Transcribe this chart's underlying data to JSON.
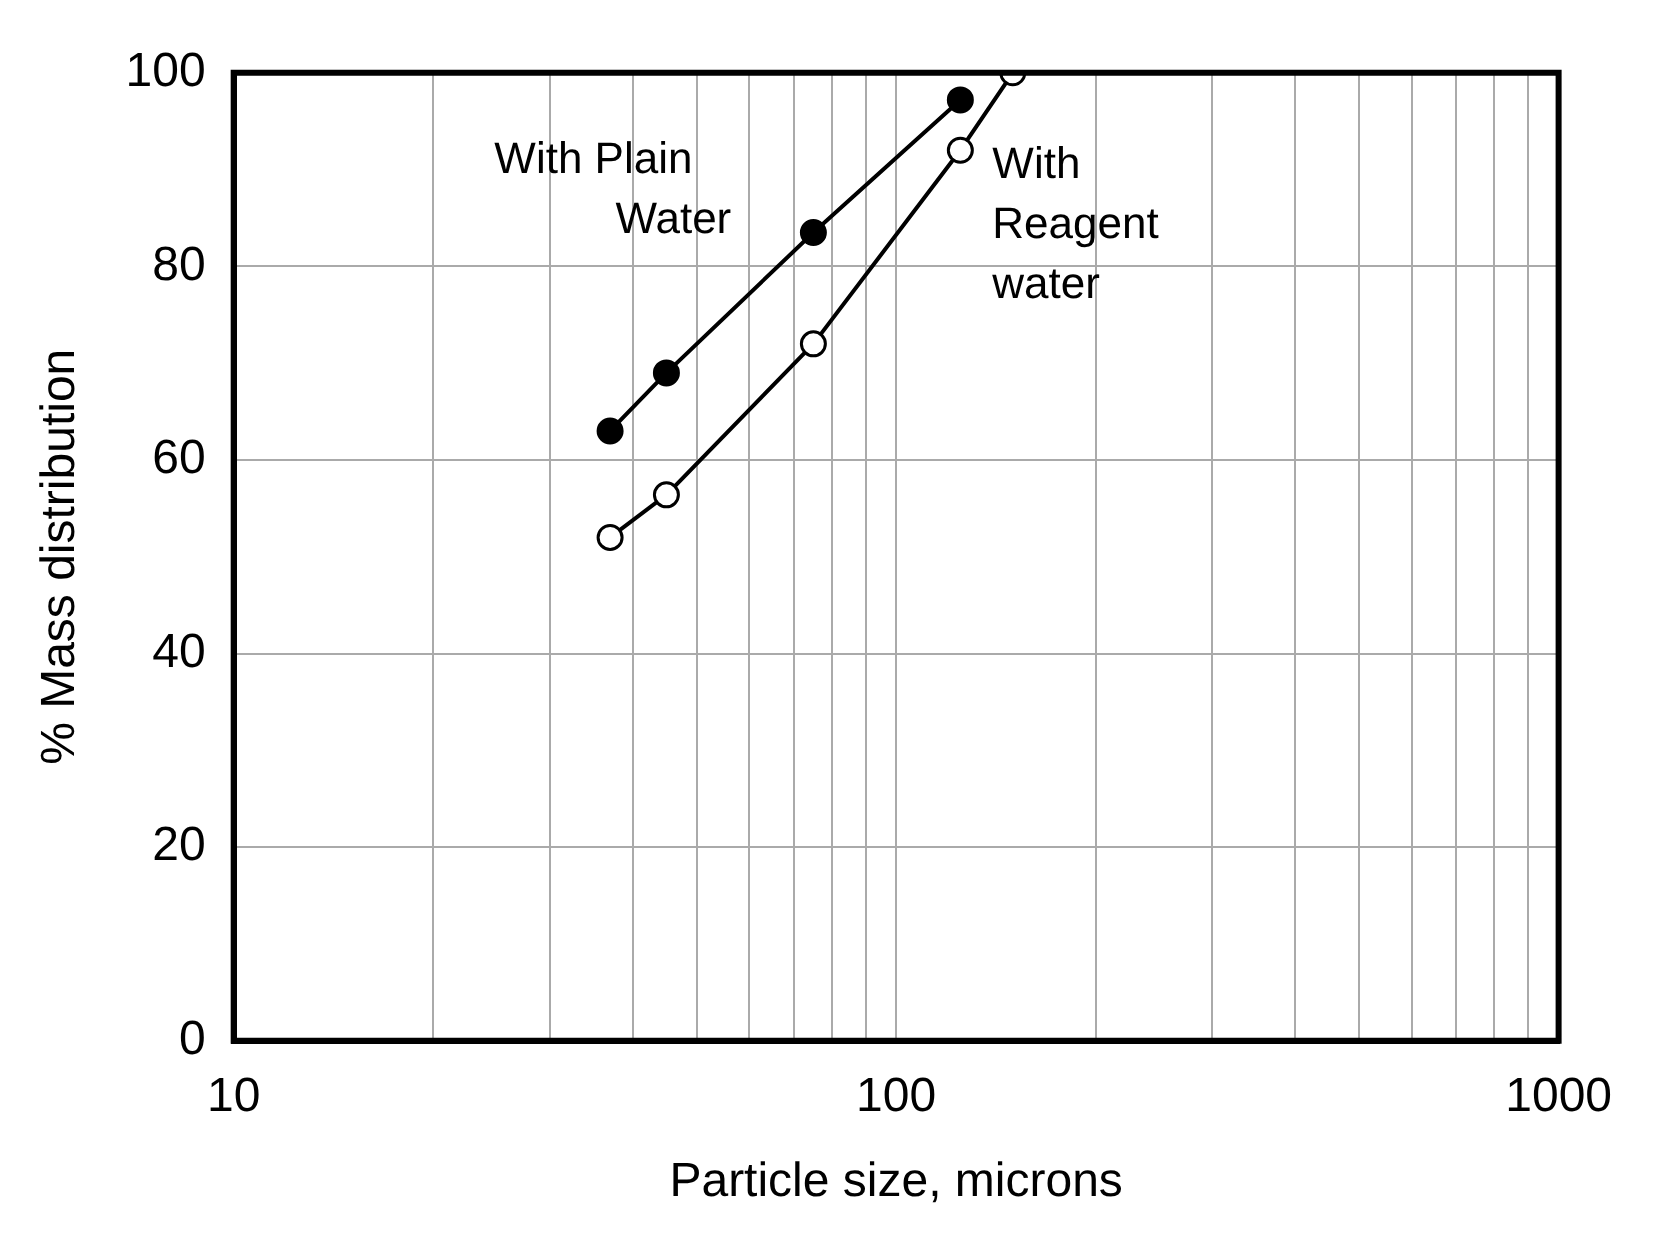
{
  "chart_data": {
    "type": "line",
    "xlabel": "Particle size, microns",
    "ylabel": "% Mass distribution",
    "log": "x",
    "xlim": [
      10,
      1000
    ],
    "ylim": [
      0,
      100
    ],
    "xticks": [
      10,
      {
        "value": 20,
        "label": null
      },
      {
        "value": 30,
        "label": null
      },
      {
        "value": 40,
        "label": null
      },
      {
        "value": 50,
        "label": null
      },
      {
        "value": 60,
        "label": null
      },
      {
        "value": 70,
        "label": null
      },
      {
        "value": 80,
        "label": null
      },
      {
        "value": 90,
        "label": null
      },
      100,
      {
        "value": 200,
        "label": null
      },
      {
        "value": 300,
        "label": null
      },
      {
        "value": 400,
        "label": null
      },
      {
        "value": 500,
        "label": null
      },
      {
        "value": 600,
        "label": null
      },
      {
        "value": 700,
        "label": null
      },
      {
        "value": 800,
        "label": null
      },
      {
        "value": 900,
        "label": null
      },
      1000
    ],
    "yticks": [
      0,
      20,
      40,
      60,
      80,
      100
    ],
    "grid": true,
    "legend": false,
    "marker": "circle",
    "line_style": "solid",
    "series": [
      {
        "name": "With Plain Water",
        "color": "#000000",
        "x": [
          37,
          45,
          75,
          125
        ],
        "values": [
          63,
          69,
          83.5,
          97.2
        ]
      },
      {
        "name": "With Reagent water",
        "color": "#000000",
        "x": [
          37,
          45,
          75,
          125,
          150
        ],
        "values": [
          52,
          56.4,
          72,
          92,
          100
        ]
      }
    ]
  }
}
